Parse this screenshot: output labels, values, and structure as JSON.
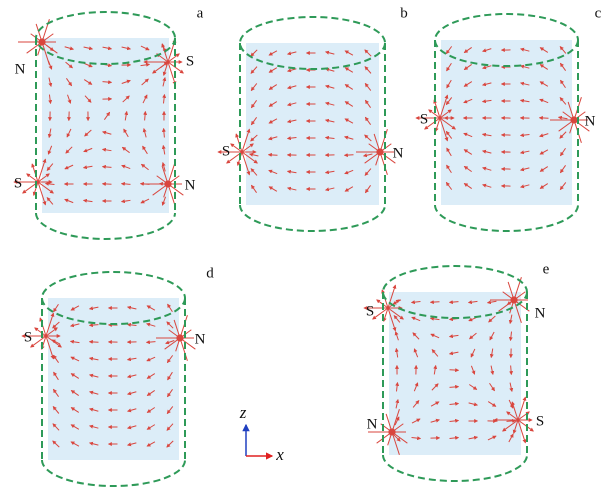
{
  "panels": [
    {
      "label": "a",
      "poles": [
        "N",
        "S",
        "S",
        "N"
      ]
    },
    {
      "label": "b",
      "poles": [
        "S",
        "N"
      ]
    },
    {
      "label": "c",
      "poles": [
        "S",
        "N"
      ]
    },
    {
      "label": "d",
      "poles": [
        "S",
        "N"
      ]
    },
    {
      "label": "e",
      "poles": [
        "S",
        "N",
        "N",
        "S"
      ]
    }
  ],
  "axes": {
    "vertical": "z",
    "horizontal": "x"
  }
}
